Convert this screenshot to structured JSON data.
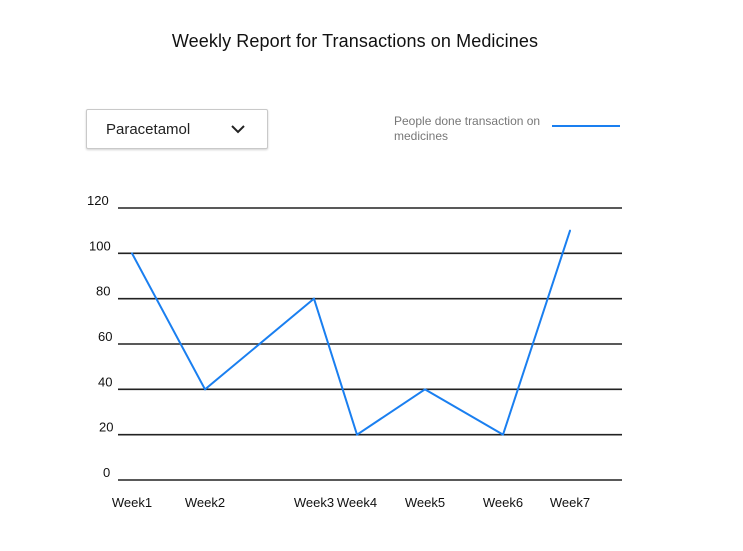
{
  "dropdown": {
    "selected": "Paracetamol",
    "icon": "chevron-down-icon"
  },
  "colors": {
    "line": "#1a7ff0",
    "grid": "#222222",
    "legend_text": "#777777"
  },
  "chart_data": {
    "type": "line",
    "title": "Weekly Report for Transactions on Medicines",
    "xlabel": "",
    "ylabel": "",
    "categories": [
      "Week1",
      "Week2",
      "Week3",
      "Week4",
      "Week5",
      "Week6",
      "Week7"
    ],
    "yticks": [
      "0",
      "20",
      "40",
      "60",
      "80",
      "100",
      "120"
    ],
    "ylim": [
      0,
      120
    ],
    "grid": true,
    "legend_position": "top-right",
    "series": [
      {
        "name": "People done transaction on medicines",
        "values": [
          100,
          40,
          80,
          20,
          40,
          20,
          110
        ]
      }
    ]
  }
}
